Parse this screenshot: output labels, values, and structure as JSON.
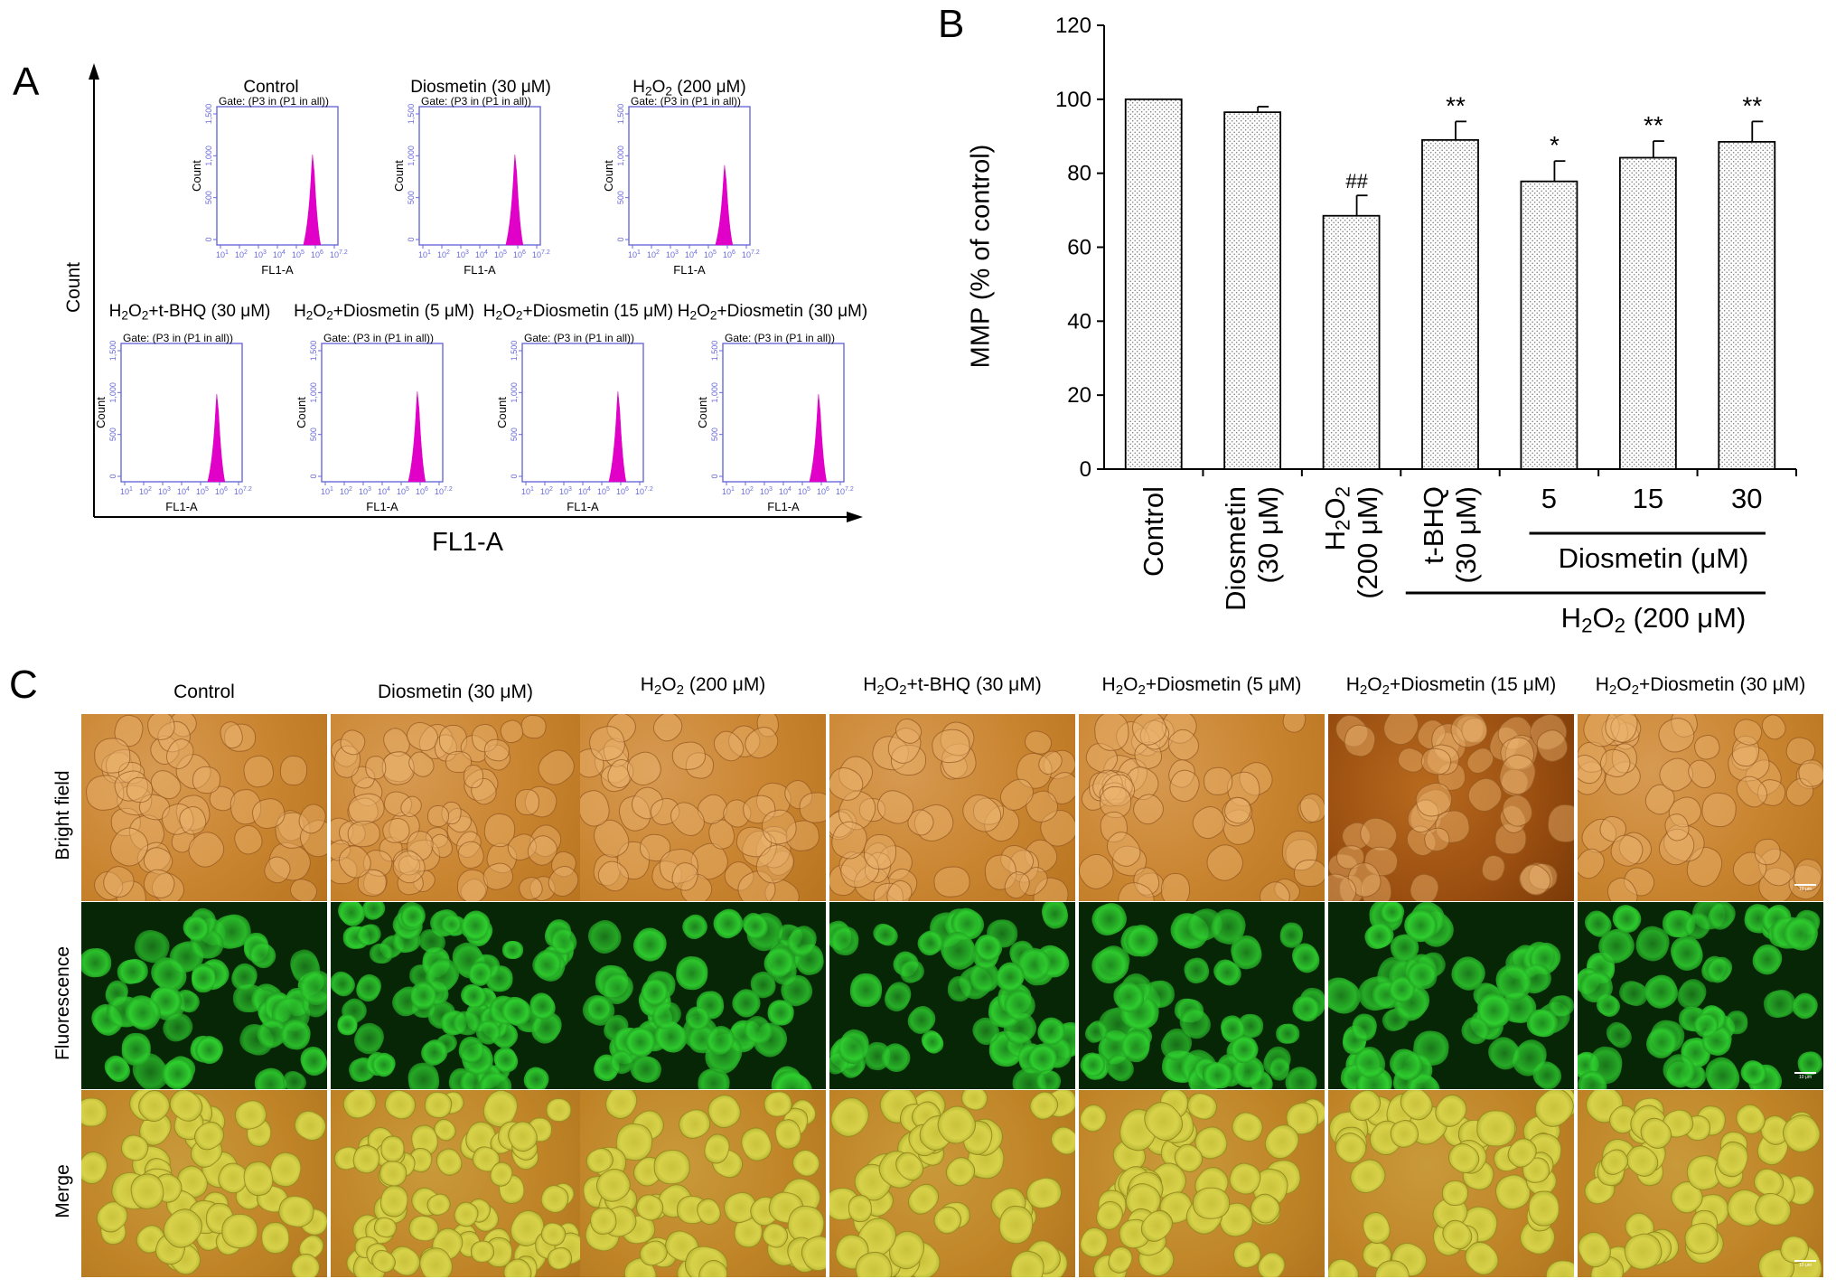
{
  "panel_labels": {
    "a": "A",
    "b": "B",
    "c": "C"
  },
  "panel_a": {
    "y_axis_label": "Count",
    "x_axis_label": "FL1-A",
    "plot_gate": "Gate: (P3 in (P1 in all))",
    "plot_ylabel": "Count",
    "plot_xlabel": "FL1-A",
    "y_ticks": [
      "0",
      "500",
      "1,000",
      "1,500"
    ],
    "x_tick_bases": [
      "10",
      "10",
      "10",
      "10",
      "10",
      "10",
      "10"
    ],
    "x_tick_exps": [
      "1",
      "2",
      "3",
      "4",
      "5",
      "6",
      "7.2"
    ],
    "histogram_color": "#e000c8",
    "plots": [
      {
        "t_pre": "Control",
        "t_sub": "",
        "t_post": "",
        "peak": 0.68
      },
      {
        "t_pre": "Diosmetin (30 μM)",
        "t_sub": "",
        "t_post": "",
        "peak": 0.68
      },
      {
        "t_pre": "H",
        "t_sub": "2",
        "t_post": "O",
        "t_sub2": "2",
        "t_post2": " (200 μM)",
        "peak": 0.6
      },
      {
        "t_pre": "H",
        "t_sub": "2",
        "t_post": "O",
        "t_sub2": "2",
        "t_post2": "+t-BHQ (30 μM)",
        "peak": 0.66
      },
      {
        "t_pre": "H",
        "t_sub": "2",
        "t_post": "O",
        "t_sub2": "2",
        "t_post2": "+Diosmetin (5 μM)",
        "peak": 0.68
      },
      {
        "t_pre": "H",
        "t_sub": "2",
        "t_post": "O",
        "t_sub2": "2",
        "t_post2": "+Diosmetin (15 μM)",
        "peak": 0.68
      },
      {
        "t_pre": "H",
        "t_sub": "2",
        "t_post": "O",
        "t_sub2": "2",
        "t_post2": "+Diosmetin (30 μM)",
        "peak": 0.66
      }
    ]
  },
  "chart_data": {
    "type": "bar",
    "categories": [
      "Control",
      "Diosmetin (30 μM)",
      "H2O2 (200 μM)",
      "t-BHQ (30 μM)",
      "5",
      "15",
      "30"
    ],
    "values": [
      100,
      96.5,
      68.5,
      89,
      77.8,
      84.2,
      88.5
    ],
    "errors": [
      0,
      1.5,
      5.5,
      5,
      5.5,
      4.5,
      5.5
    ],
    "significance": [
      "",
      "",
      "##",
      "**",
      "*",
      "**",
      "**"
    ],
    "ylabel": "MMP (% of control)",
    "ylim": [
      0,
      120
    ],
    "yticks": [
      0,
      20,
      40,
      60,
      80,
      100,
      120
    ],
    "group_labels": {
      "diosmetin": "Diosmetin (μM)",
      "h2o2_pre": "H",
      "h2o2_sub": "2",
      "h2o2_mid": "O",
      "h2o2_sub2": "2",
      "h2o2_post": " (200 μM)"
    },
    "category_lines": [
      {
        "line1": "Control",
        "line2": ""
      },
      {
        "line1": "Diosmetin",
        "line2": "(30 μM)"
      },
      {
        "line1": "H2O2",
        "line2": "(200 μM)"
      },
      {
        "line1": "t-BHQ",
        "line2": "(30 μM)"
      }
    ]
  },
  "panel_c": {
    "columns": [
      {
        "pre": "Control",
        "sub": "",
        "mid": "",
        "sub2": "",
        "post": ""
      },
      {
        "pre": "Diosmetin (30 μM)",
        "sub": "",
        "mid": "",
        "sub2": "",
        "post": ""
      },
      {
        "pre": "H",
        "sub": "2",
        "mid": "O",
        "sub2": "2",
        "post": " (200 μM)"
      },
      {
        "pre": "H",
        "sub": "2",
        "mid": "O",
        "sub2": "2",
        "post": "+t-BHQ (30 μM)"
      },
      {
        "pre": "H",
        "sub": "2",
        "mid": "O",
        "sub2": "2",
        "post": "+Diosmetin (5 μM)"
      },
      {
        "pre": "H",
        "sub": "2",
        "mid": "O",
        "sub2": "2",
        "post": "+Diosmetin (15 μM)"
      },
      {
        "pre": "H",
        "sub": "2",
        "mid": "O",
        "sub2": "2",
        "post": "+Diosmetin (30 μM)"
      }
    ],
    "rows": [
      "Bright field",
      "Fluorescence",
      "Merge"
    ],
    "scalebar": "10 μm"
  }
}
